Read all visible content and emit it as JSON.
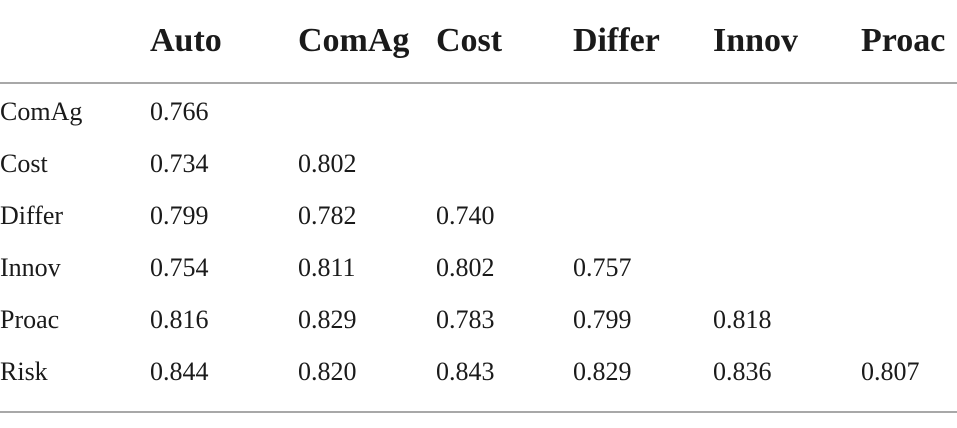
{
  "table": {
    "columns": [
      "",
      "Auto",
      "ComAg",
      "Cost",
      "Differ",
      "Innov",
      "Proac"
    ],
    "rows": [
      {
        "label": "ComAg",
        "values": [
          "0.766",
          "",
          "",
          "",
          "",
          ""
        ]
      },
      {
        "label": "Cost",
        "values": [
          "0.734",
          "0.802",
          "",
          "",
          "",
          ""
        ]
      },
      {
        "label": "Differ",
        "values": [
          "0.799",
          "0.782",
          "0.740",
          "",
          "",
          ""
        ]
      },
      {
        "label": "Innov",
        "values": [
          "0.754",
          "0.811",
          "0.802",
          "0.757",
          "",
          ""
        ]
      },
      {
        "label": "Proac",
        "values": [
          "0.816",
          "0.829",
          "0.783",
          "0.799",
          "0.818",
          ""
        ]
      },
      {
        "label": "Risk",
        "values": [
          "0.844",
          "0.820",
          "0.843",
          "0.829",
          "0.836",
          "0.807"
        ]
      }
    ]
  }
}
